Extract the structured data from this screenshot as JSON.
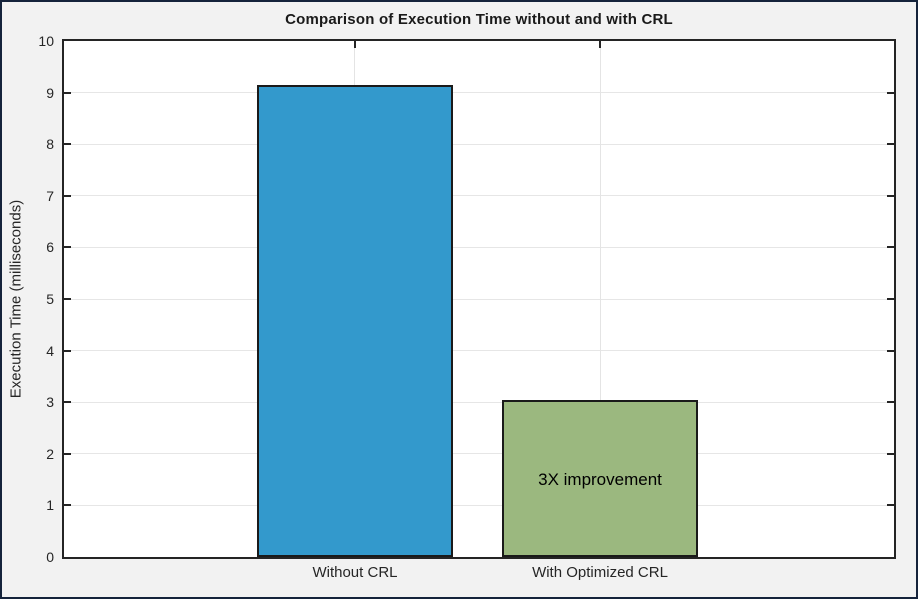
{
  "figure": {
    "background_color": "#f2f2f2",
    "border_color": "#15233b",
    "plot_background": "#ffffff",
    "axis_color": "#242424",
    "grid_color": "#e6e6e6",
    "text_color": "#262626"
  },
  "chart_data": {
    "type": "bar",
    "title": "Comparison of Execution Time without and with CRL",
    "categories": [
      "Without CRL",
      "With Optimized CRL"
    ],
    "values": [
      9.15,
      3.05
    ],
    "bar_colors": [
      "#3399cc",
      "#9bb87f"
    ],
    "bar_edge_color": "#1a1a1a",
    "xlabel": "",
    "ylabel": "Execution Time (milliseconds)",
    "ylim": [
      0,
      10
    ],
    "yticks": [
      0,
      1,
      2,
      3,
      4,
      5,
      6,
      7,
      8,
      9,
      10
    ],
    "grid": true,
    "legend": "none",
    "annotation": {
      "text": "3X improvement",
      "bar_index": 1,
      "y_value": 1.5
    }
  }
}
